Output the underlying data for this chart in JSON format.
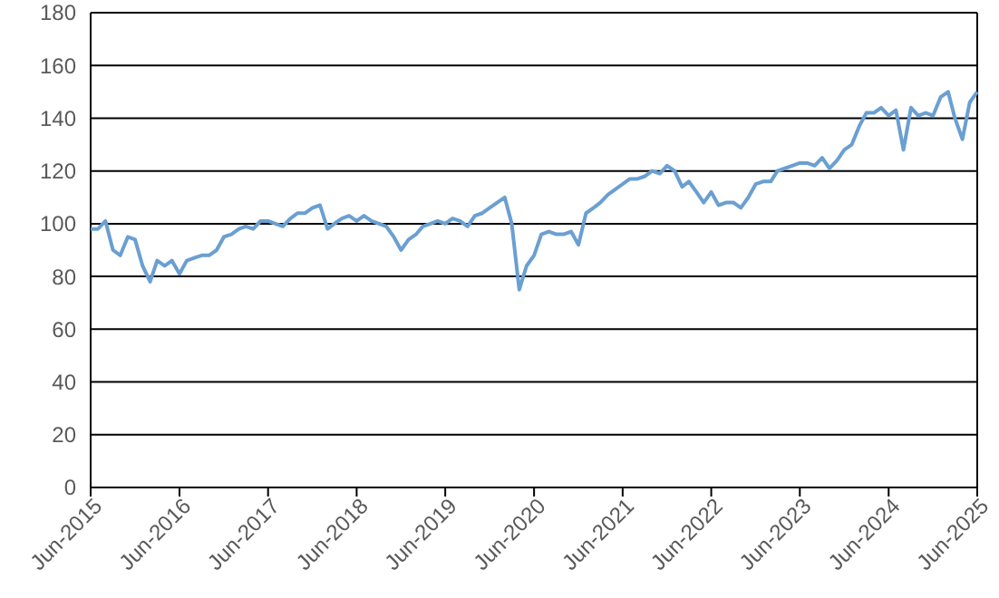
{
  "chart_data": {
    "type": "line",
    "x": [
      "2015-06",
      "2015-07",
      "2015-08",
      "2015-09",
      "2015-10",
      "2015-11",
      "2015-12",
      "2016-01",
      "2016-02",
      "2016-03",
      "2016-04",
      "2016-05",
      "2016-06",
      "2016-07",
      "2016-08",
      "2016-09",
      "2016-10",
      "2016-11",
      "2016-12",
      "2017-01",
      "2017-02",
      "2017-03",
      "2017-04",
      "2017-05",
      "2017-06",
      "2017-07",
      "2017-08",
      "2017-09",
      "2017-10",
      "2017-11",
      "2017-12",
      "2018-01",
      "2018-02",
      "2018-03",
      "2018-04",
      "2018-05",
      "2018-06",
      "2018-07",
      "2018-08",
      "2018-09",
      "2018-10",
      "2018-11",
      "2018-12",
      "2019-01",
      "2019-02",
      "2019-03",
      "2019-04",
      "2019-05",
      "2019-06",
      "2019-07",
      "2019-08",
      "2019-09",
      "2019-10",
      "2019-11",
      "2019-12",
      "2020-01",
      "2020-02",
      "2020-03",
      "2020-04",
      "2020-05",
      "2020-06",
      "2020-07",
      "2020-08",
      "2020-09",
      "2020-10",
      "2020-11",
      "2020-12",
      "2021-01",
      "2021-02",
      "2021-03",
      "2021-04",
      "2021-05",
      "2021-06",
      "2021-07",
      "2021-08",
      "2021-09",
      "2021-10",
      "2021-11",
      "2021-12",
      "2022-01",
      "2022-02",
      "2022-03",
      "2022-04",
      "2022-05",
      "2022-06",
      "2022-07",
      "2022-08",
      "2022-09",
      "2022-10",
      "2022-11",
      "2022-12",
      "2023-01",
      "2023-02",
      "2023-03",
      "2023-04",
      "2023-05",
      "2023-06",
      "2023-07",
      "2023-08",
      "2023-09",
      "2023-10",
      "2023-11",
      "2023-12",
      "2024-01",
      "2024-02",
      "2024-03",
      "2024-04",
      "2024-05",
      "2024-06",
      "2024-07",
      "2024-08",
      "2024-09",
      "2024-10",
      "2024-11",
      "2024-12",
      "2025-01",
      "2025-02",
      "2025-03",
      "2025-04",
      "2025-05",
      "2025-06"
    ],
    "series": [
      {
        "color": "#6a9fd2",
        "values": [
          98,
          98,
          101,
          90,
          88,
          95,
          94,
          84,
          78,
          86,
          84,
          86,
          81,
          86,
          87,
          88,
          88,
          90,
          95,
          96,
          98,
          99,
          98,
          101,
          101,
          100,
          99,
          102,
          104,
          104,
          106,
          107,
          98,
          100,
          102,
          103,
          101,
          103,
          101,
          100,
          99,
          95,
          90,
          94,
          96,
          99,
          100,
          101,
          100,
          102,
          101,
          99,
          103,
          104,
          106,
          108,
          110,
          100,
          75,
          84,
          88,
          96,
          97,
          96,
          96,
          97,
          92,
          104,
          106,
          108,
          111,
          113,
          115,
          117,
          117,
          118,
          120,
          119,
          122,
          120,
          114,
          116,
          112,
          108,
          112,
          107,
          108,
          108,
          106,
          110,
          115,
          116,
          116,
          120,
          121,
          122,
          123,
          123,
          122,
          125,
          121,
          124,
          128,
          130,
          137,
          142,
          142,
          144,
          141,
          143,
          128,
          144,
          141,
          142,
          141,
          148,
          150,
          140,
          132,
          146,
          150
        ]
      }
    ],
    "xlim": [
      "2015-06",
      "2025-06"
    ],
    "xticks": [
      {
        "value": "2015-06",
        "label": "Jun-2015"
      },
      {
        "value": "2016-06",
        "label": "Jun-2016"
      },
      {
        "value": "2017-06",
        "label": "Jun-2017"
      },
      {
        "value": "2018-06",
        "label": "Jun-2018"
      },
      {
        "value": "2019-06",
        "label": "Jun-2019"
      },
      {
        "value": "2020-06",
        "label": "Jun-2020"
      },
      {
        "value": "2021-06",
        "label": "Jun-2021"
      },
      {
        "value": "2022-06",
        "label": "Jun-2022"
      },
      {
        "value": "2023-06",
        "label": "Jun-2023"
      },
      {
        "value": "2024-06",
        "label": "Jun-2024"
      },
      {
        "value": "2025-06",
        "label": "Jun-2025"
      }
    ],
    "ylim": [
      0,
      180
    ],
    "yticks": [
      0,
      20,
      40,
      60,
      80,
      100,
      120,
      140,
      160,
      180
    ],
    "grid": "y"
  }
}
